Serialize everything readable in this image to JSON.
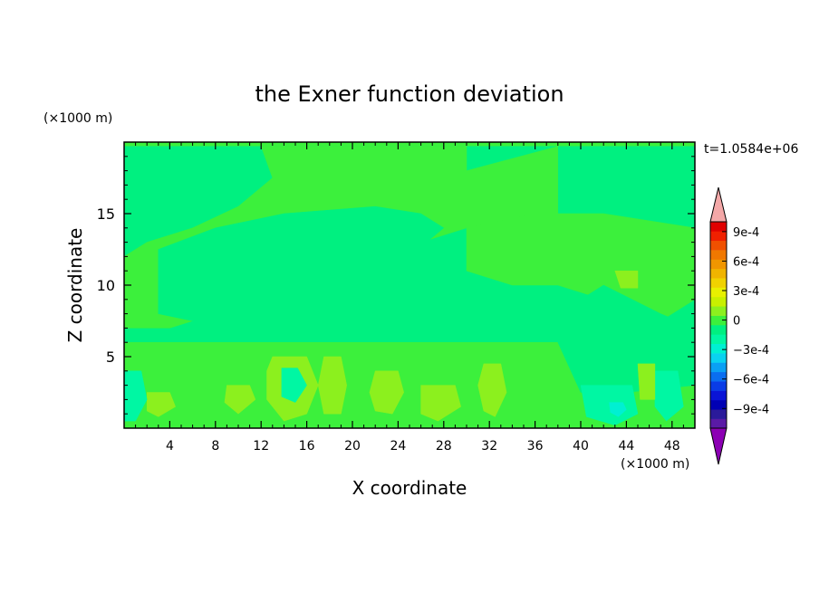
{
  "chart_data": {
    "type": "heatmap",
    "title": "the Exner function deviation",
    "xlabel": "X coordinate",
    "ylabel": "Z coordinate",
    "x_unit": "(×1000 m)",
    "y_unit": "(×1000 m)",
    "time_label": "t=1.0584e+06",
    "xlim": [
      0,
      50
    ],
    "ylim": [
      0,
      20
    ],
    "xticks": [
      4,
      8,
      12,
      16,
      20,
      24,
      28,
      32,
      36,
      40,
      44,
      48
    ],
    "xtick_labels": [
      "4",
      "8",
      "12",
      "16",
      "20",
      "24",
      "28",
      "32",
      "36",
      "40",
      "44",
      "48"
    ],
    "yticks": [
      5,
      10,
      15
    ],
    "ytick_labels": [
      "5",
      "10",
      "15"
    ],
    "colorbar": {
      "levels": [
        -0.0011,
        -0.001,
        -0.0009,
        -0.0008,
        -0.0007,
        -0.0006,
        -0.0005,
        -0.0004,
        -0.0003,
        -0.0002,
        -0.0001,
        0,
        0.0001,
        0.0002,
        0.0003,
        0.0004,
        0.0005,
        0.0006,
        0.0007,
        0.0008,
        0.0009,
        0.001
      ],
      "colors": [
        "#5a1aa6",
        "#2a1a9a",
        "#0000b4",
        "#0a14d6",
        "#0a3ce6",
        "#0a6ef0",
        "#0aa0f4",
        "#0ad2f0",
        "#00f0d2",
        "#00f7a3",
        "#00f080",
        "#3cf03c",
        "#8cf01e",
        "#c8f000",
        "#e8f000",
        "#f0d200",
        "#f0b400",
        "#f09600",
        "#f07800",
        "#f05000",
        "#f02000",
        "#e00000"
      ],
      "under_color": "#8c00b4",
      "over_color": "#f4a8a8",
      "tick_values": [
        0.0009,
        0.0006,
        0.0003,
        0,
        -0.0003,
        -0.0006,
        -0.0009
      ],
      "tick_labels": [
        "9e-4",
        "6e-4",
        "3e-4",
        "0",
        "−3e-4",
        "−6e-4",
        "−9e-4"
      ]
    },
    "field": {
      "background_value": 5e-05,
      "regions": [
        {
          "value": -5e-05,
          "points": [
            [
              0,
              19.7
            ],
            [
              50,
              19.7
            ],
            [
              50,
              0
            ],
            [
              0,
              0
            ]
          ]
        },
        {
          "value": 5e-05,
          "points": [
            [
              12,
              19.7
            ],
            [
              30,
              19.7
            ],
            [
              30,
              18
            ],
            [
              38,
              19.7
            ],
            [
              38,
              15
            ],
            [
              30,
              14
            ],
            [
              26,
              13
            ],
            [
              20,
              11
            ],
            [
              14,
              9.5
            ],
            [
              8,
              8
            ],
            [
              4,
              7
            ],
            [
              2,
              7
            ],
            [
              0,
              7
            ],
            [
              0,
              12
            ],
            [
              2,
              13
            ],
            [
              6,
              14
            ],
            [
              10,
              15.5
            ],
            [
              13,
              17.5
            ]
          ]
        },
        {
          "value": 5e-05,
          "points": [
            [
              30,
              14
            ],
            [
              36,
              15
            ],
            [
              42,
              15
            ],
            [
              50,
              14
            ],
            [
              50,
              9
            ],
            [
              46,
              7
            ],
            [
              42,
              9
            ],
            [
              38,
              10
            ],
            [
              34,
              10
            ],
            [
              30,
              11
            ]
          ]
        },
        {
          "value": -5e-05,
          "points": [
            [
              3,
              12.5
            ],
            [
              8,
              14
            ],
            [
              14,
              15
            ],
            [
              22,
              15.5
            ],
            [
              26,
              15
            ],
            [
              28,
              14
            ],
            [
              25,
              12
            ],
            [
              22,
              10.5
            ],
            [
              18,
              10
            ],
            [
              14,
              9
            ],
            [
              10,
              8
            ],
            [
              6,
              7.5
            ],
            [
              3,
              8
            ]
          ]
        },
        {
          "value": -5e-05,
          "points": [
            [
              42,
              10
            ],
            [
              47,
              8
            ],
            [
              50,
              7
            ],
            [
              50,
              2
            ],
            [
              46,
              3
            ],
            [
              42,
              4
            ],
            [
              40,
              5
            ],
            [
              38,
              6
            ],
            [
              38,
              8
            ]
          ]
        },
        {
          "value": 5e-05,
          "points": [
            [
              0,
              6
            ],
            [
              50,
              6
            ],
            [
              50,
              0
            ],
            [
              0,
              0
            ]
          ]
        },
        {
          "value": -5e-05,
          "points": [
            [
              38,
              6
            ],
            [
              44,
              6.5
            ],
            [
              48,
              7
            ],
            [
              50,
              6
            ],
            [
              50,
              3
            ],
            [
              44,
              2.5
            ],
            [
              40,
              2.5
            ]
          ]
        },
        {
          "value": 0.00015,
          "points": [
            [
              13,
              5
            ],
            [
              16,
              5
            ],
            [
              17,
              3
            ],
            [
              16,
              1
            ],
            [
              14,
              0.5
            ],
            [
              12.5,
              2
            ],
            [
              12.5,
              4
            ]
          ]
        },
        {
          "value": -0.00015,
          "points": [
            [
              13.8,
              4.2
            ],
            [
              15.2,
              4.2
            ],
            [
              16,
              3
            ],
            [
              15,
              1.8
            ],
            [
              13.8,
              2.2
            ]
          ]
        },
        {
          "value": 0.00015,
          "points": [
            [
              17.5,
              5
            ],
            [
              19,
              5
            ],
            [
              19.5,
              3
            ],
            [
              19,
              1
            ],
            [
              17.5,
              1
            ],
            [
              17,
              3
            ]
          ]
        },
        {
          "value": 0.00015,
          "points": [
            [
              22,
              4
            ],
            [
              24,
              4
            ],
            [
              24.5,
              2.5
            ],
            [
              23.5,
              1
            ],
            [
              22,
              1.2
            ],
            [
              21.5,
              2.5
            ]
          ]
        },
        {
          "value": 0.00015,
          "points": [
            [
              26,
              3
            ],
            [
              29,
              3
            ],
            [
              29.5,
              1.5
            ],
            [
              27.5,
              0.5
            ],
            [
              26,
              1
            ]
          ]
        },
        {
          "value": 0.00015,
          "points": [
            [
              31.5,
              4.5
            ],
            [
              33,
              4.5
            ],
            [
              33.5,
              2.5
            ],
            [
              32.5,
              0.8
            ],
            [
              31.5,
              1.2
            ],
            [
              31,
              3
            ]
          ]
        },
        {
          "value": 0.00015,
          "points": [
            [
              2,
              2.5
            ],
            [
              4,
              2.5
            ],
            [
              4.5,
              1.5
            ],
            [
              3,
              0.8
            ],
            [
              2,
              1.2
            ]
          ]
        },
        {
          "value": 0.00015,
          "points": [
            [
              9,
              3
            ],
            [
              11,
              3
            ],
            [
              11.5,
              2
            ],
            [
              10,
              1
            ],
            [
              8.8,
              1.8
            ]
          ]
        },
        {
          "value": -0.00015,
          "points": [
            [
              40,
              3
            ],
            [
              44.5,
              3
            ],
            [
              45,
              1
            ],
            [
              43,
              0.2
            ],
            [
              40.5,
              0.8
            ]
          ]
        },
        {
          "value": -0.00025,
          "points": [
            [
              42.5,
              1.8
            ],
            [
              43.7,
              1.8
            ],
            [
              44,
              1.3
            ],
            [
              43.3,
              0.8
            ],
            [
              42.6,
              1.1
            ]
          ]
        },
        {
          "value": -0.00015,
          "points": [
            [
              46.5,
              4
            ],
            [
              48.5,
              4
            ],
            [
              49,
              1.5
            ],
            [
              47.5,
              0.5
            ],
            [
              46.5,
              1.5
            ]
          ]
        },
        {
          "value": 0.00015,
          "points": [
            [
              45,
              4.5
            ],
            [
              46.5,
              4.5
            ],
            [
              46.5,
              2
            ],
            [
              45.2,
              2
            ]
          ]
        },
        {
          "value": 0.00015,
          "points": [
            [
              43,
              11
            ],
            [
              45,
              11
            ],
            [
              45,
              9.8
            ],
            [
              43.5,
              9.8
            ]
          ]
        },
        {
          "value": -0.00015,
          "points": [
            [
              0,
              4
            ],
            [
              1.5,
              4
            ],
            [
              2,
              2
            ],
            [
              1,
              0.5
            ],
            [
              0,
              0.5
            ]
          ]
        }
      ]
    }
  }
}
